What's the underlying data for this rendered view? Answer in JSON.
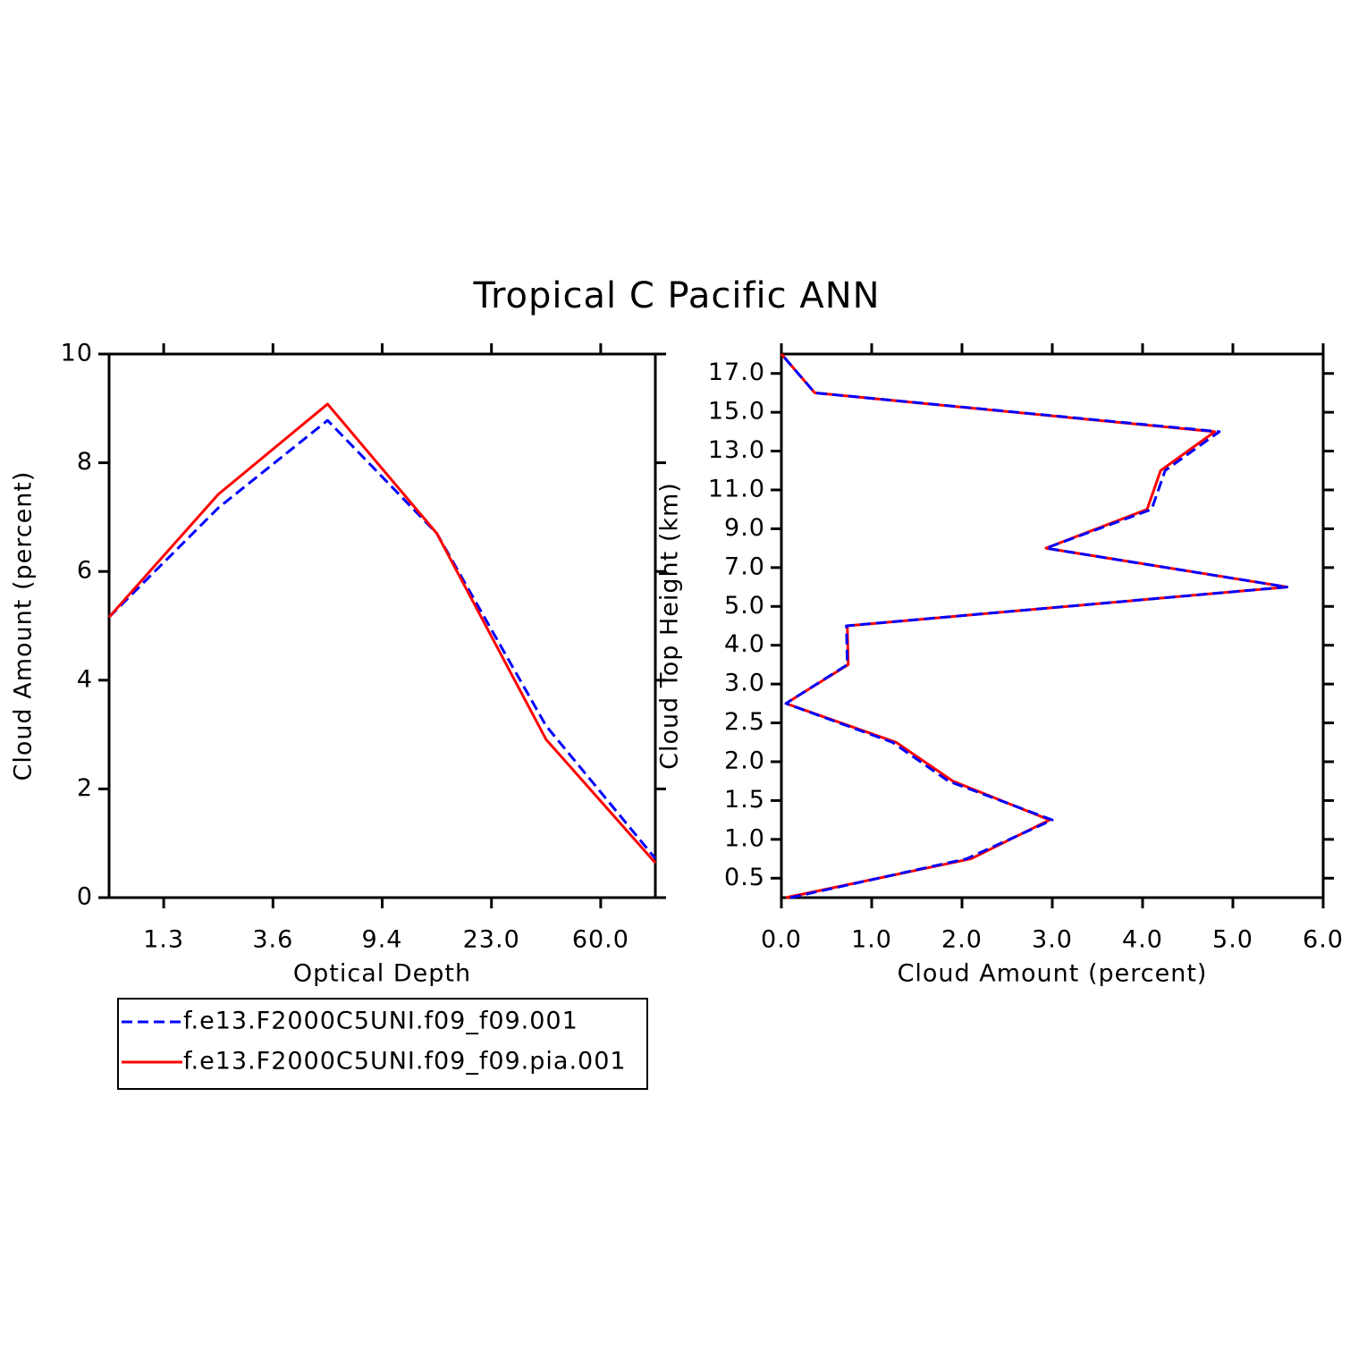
{
  "title": "Tropical C Pacific ANN",
  "chart_data": [
    {
      "type": "line",
      "xlabel": "Optical Depth",
      "ylabel": "Cloud Amount (percent)",
      "x": [
        0,
        1,
        2,
        3,
        4,
        5
      ],
      "xlim": [
        0,
        5
      ],
      "xticks": [
        {
          "value": 0.5,
          "label": "1.3"
        },
        {
          "value": 1.5,
          "label": "3.6"
        },
        {
          "value": 2.5,
          "label": "9.4"
        },
        {
          "value": 3.5,
          "label": "23.0"
        },
        {
          "value": 4.5,
          "label": "60.0"
        }
      ],
      "ylim": [
        0,
        10
      ],
      "yticks": [
        0,
        2,
        4,
        6,
        8,
        10
      ],
      "series": [
        {
          "name": "f.e13.F2000C5UNI.f09_f09.001",
          "color": "#0000ff",
          "dashed": true,
          "values": [
            5.16,
            7.17,
            8.78,
            6.7,
            3.16,
            0.72
          ]
        },
        {
          "name": "f.e13.F2000C5UNI.f09_f09.pia.001",
          "color": "#ff0000",
          "dashed": false,
          "values": [
            5.16,
            7.42,
            9.08,
            6.7,
            2.91,
            0.64
          ]
        }
      ]
    },
    {
      "type": "line",
      "orientation": "horizontal",
      "xlabel": "Cloud Amount (percent)",
      "ylabel": "Cloud Top Height (km)",
      "y": [
        0,
        1,
        2,
        3,
        4,
        5,
        6,
        7,
        8,
        9,
        10,
        11,
        12,
        13,
        14
      ],
      "xlim": [
        0,
        6
      ],
      "xticks": [
        {
          "value": 0,
          "label": "0.0"
        },
        {
          "value": 1,
          "label": "1.0"
        },
        {
          "value": 2,
          "label": "2.0"
        },
        {
          "value": 3,
          "label": "3.0"
        },
        {
          "value": 4,
          "label": "4.0"
        },
        {
          "value": 5,
          "label": "5.0"
        },
        {
          "value": 6,
          "label": "6.0"
        }
      ],
      "ylim": [
        0,
        14
      ],
      "yticks": [
        {
          "value": 0.5,
          "label": "0.5"
        },
        {
          "value": 1.5,
          "label": "1.0"
        },
        {
          "value": 2.5,
          "label": "1.5"
        },
        {
          "value": 3.5,
          "label": "2.0"
        },
        {
          "value": 4.5,
          "label": "2.5"
        },
        {
          "value": 5.5,
          "label": "3.0"
        },
        {
          "value": 6.5,
          "label": "4.0"
        },
        {
          "value": 7.5,
          "label": "5.0"
        },
        {
          "value": 8.5,
          "label": "7.0"
        },
        {
          "value": 9.5,
          "label": "9.0"
        },
        {
          "value": 10.5,
          "label": "11.0"
        },
        {
          "value": 11.5,
          "label": "13.0"
        },
        {
          "value": 12.5,
          "label": "15.0"
        },
        {
          "value": 13.5,
          "label": "17.0"
        }
      ],
      "series": [
        {
          "color": "#ff0000",
          "dashed": false,
          "values": [
            0.05,
            2.1,
            2.97,
            1.9,
            1.27,
            0.05,
            0.74,
            0.73,
            5.6,
            2.93,
            4.05,
            4.2,
            4.8,
            0.37,
            0.0
          ]
        },
        {
          "color": "#0000ff",
          "dashed": true,
          "values": [
            0.1,
            2.05,
            3.0,
            1.85,
            1.23,
            0.05,
            0.73,
            0.72,
            5.6,
            2.93,
            4.1,
            4.25,
            4.85,
            0.37,
            0.0
          ]
        }
      ]
    }
  ]
}
